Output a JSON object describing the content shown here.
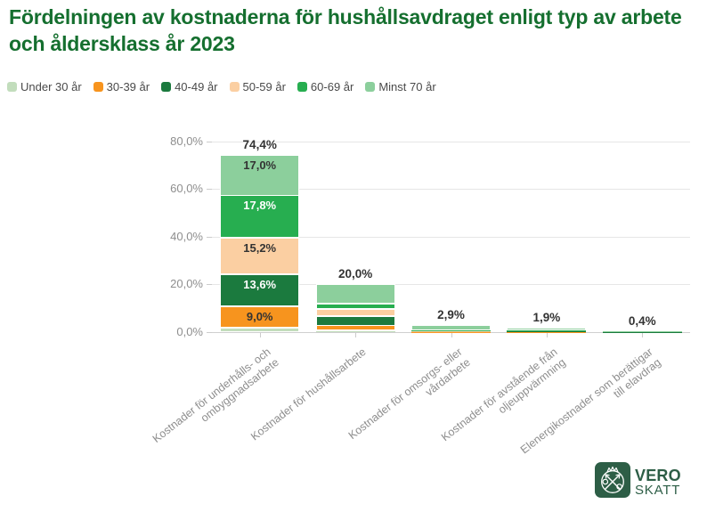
{
  "title": {
    "text": "Fördelningen av kostnaderna för hushållsavdraget enligt typ av arbete\noch åldersklass år 2023"
  },
  "colors": {
    "title_green": "#156f2f",
    "logo_green": "#2d5e46",
    "axis_text": "#8e8e8e",
    "label_dark": "#333333",
    "grid_line": "#e6e6e6",
    "axis_line": "#cfcfcf"
  },
  "legend": {
    "items": [
      {
        "label": "Under 30 år",
        "color": "#c2ddbc"
      },
      {
        "label": "30-39 år",
        "color": "#f7941e"
      },
      {
        "label": "40-49 år",
        "color": "#1b7a3e"
      },
      {
        "label": "50-59 år",
        "color": "#fbcfa2"
      },
      {
        "label": "60-69 år",
        "color": "#27ae50"
      },
      {
        "label": "Minst 70 år",
        "color": "#8ccf9c"
      }
    ]
  },
  "chart_data": {
    "type": "bar",
    "stacked": true,
    "grid": true,
    "ylim": [
      0,
      80
    ],
    "y_ticks": [
      {
        "value": 80,
        "label": "80,0%"
      },
      {
        "value": 60,
        "label": "60,0%"
      },
      {
        "value": 40,
        "label": "40,0%"
      },
      {
        "value": 20,
        "label": "20,0%"
      },
      {
        "value": 0,
        "label": "0,0%"
      }
    ],
    "categories": [
      "Kostnader för underhålls- och\nombyggnadsarbete",
      "Kostnader för hushållsarbete",
      "Kostnader för omsorgs- eller\nvårdarbete",
      "Kostnader för avstående från\noljeuppvärmning",
      "Elenergikostnader som berättigar\ntill elavdrag"
    ],
    "series": [
      {
        "name": "Under 30 år",
        "color": "#c2ddbc",
        "label_color": "#333333",
        "values": [
          1.8,
          0.5,
          0.05,
          0.05,
          0.05
        ],
        "value_labels": [
          null,
          null,
          null,
          null,
          null
        ]
      },
      {
        "name": "30-39 år",
        "color": "#f7941e",
        "label_color": "#333333",
        "values": [
          9.0,
          2.3,
          0.1,
          0.1,
          0.05
        ],
        "value_labels": [
          "9,0%",
          null,
          null,
          null,
          null
        ]
      },
      {
        "name": "40-49 år",
        "color": "#1b7a3e",
        "label_color": "#ffffff",
        "values": [
          13.6,
          4.0,
          0.15,
          0.15,
          0.05
        ],
        "value_labels": [
          "13,6%",
          null,
          null,
          null,
          null
        ]
      },
      {
        "name": "50-59 år",
        "color": "#fbcfa2",
        "label_color": "#333333",
        "values": [
          15.2,
          3.0,
          0.25,
          0.4,
          0.1
        ],
        "value_labels": [
          "15,2%",
          null,
          null,
          null,
          null
        ]
      },
      {
        "name": "60-69 år",
        "color": "#27ae50",
        "label_color": "#ffffff",
        "values": [
          17.8,
          2.1,
          0.25,
          0.2,
          0.05
        ],
        "value_labels": [
          "17,8%",
          null,
          null,
          null,
          null
        ]
      },
      {
        "name": "Minst 70 år",
        "color": "#8ccf9c",
        "label_color": "#333333",
        "values": [
          17.0,
          8.1,
          2.1,
          1.0,
          0.1
        ],
        "value_labels": [
          "17,0%",
          null,
          null,
          null,
          null
        ]
      }
    ],
    "totals": [
      "74,4%",
      "20,0%",
      "2,9%",
      "1,9%",
      "0,4%"
    ]
  },
  "logo": {
    "line1": "VERO",
    "line2": "SKATT"
  }
}
